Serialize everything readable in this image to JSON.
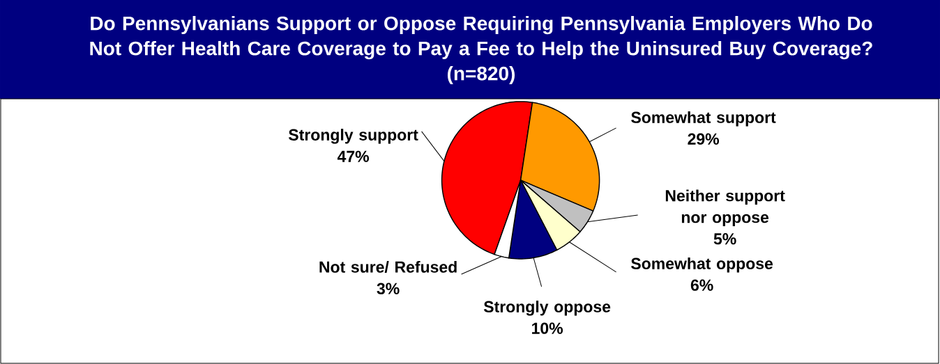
{
  "chart_data": {
    "type": "pie",
    "title": "Do Pennsylvanians Support or Oppose Requiring Pennsylvania Employers Who Do Not Offer Health Care Coverage to Pay a Fee to Help the Uninsured Buy Coverage?",
    "subtitle": "(n=820)",
    "categories": [
      "Strongly support",
      "Somewhat support",
      "Neither support nor oppose",
      "Somewhat oppose",
      "Strongly oppose",
      "Not sure/ Refused"
    ],
    "values": [
      47,
      29,
      5,
      6,
      10,
      3
    ],
    "value_labels": [
      "47%",
      "29%",
      "5%",
      "6%",
      "10%",
      "3%"
    ],
    "colors": [
      "#ff0000",
      "#ff9900",
      "#c0c0c0",
      "#ffffcc",
      "#000080",
      "#ffffff"
    ]
  }
}
